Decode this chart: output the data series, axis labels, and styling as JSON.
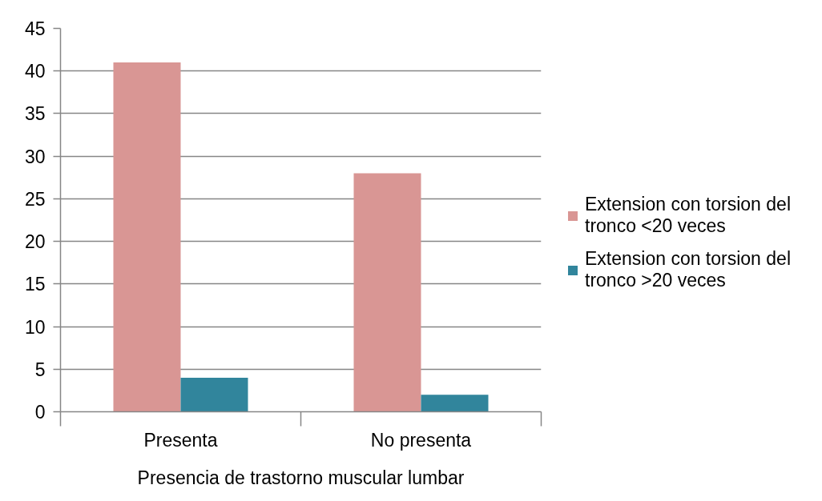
{
  "chart_data": {
    "type": "bar",
    "categories": [
      "Presenta",
      "No presenta"
    ],
    "xlabel": "Presencia de trastorno muscular lumbar",
    "series": [
      {
        "name": "Extension con torsion del tronco <20 veces",
        "color": "#d99694",
        "values": [
          41,
          28
        ]
      },
      {
        "name": "Extension con torsion del tronco >20 veces",
        "color": "#31859c",
        "values": [
          4,
          2
        ]
      }
    ],
    "ylim": [
      0,
      45
    ],
    "yticks": [
      0,
      5,
      10,
      15,
      20,
      25,
      30,
      35,
      40,
      45
    ],
    "grid": "y",
    "legend": "right"
  }
}
